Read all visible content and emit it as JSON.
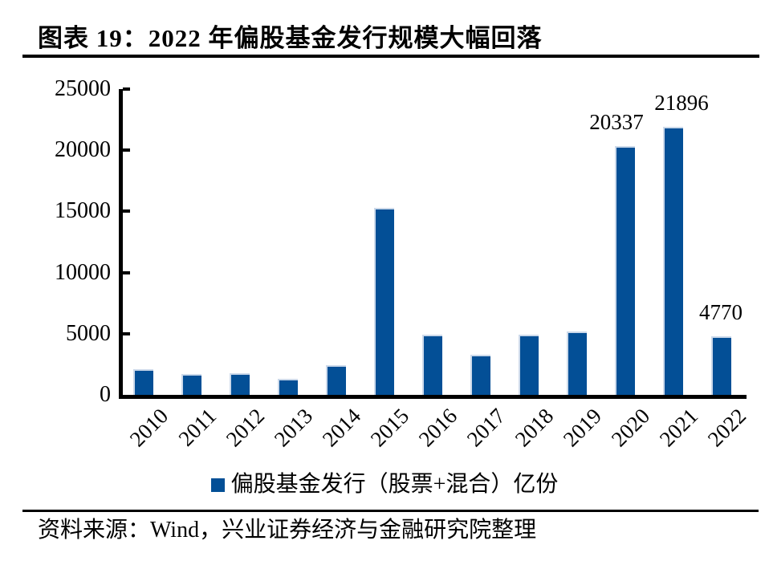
{
  "figure": {
    "title": "图表 19：2022 年偏股基金发行规模大幅回落",
    "source": "资料来源：Wind，兴业证券经济与金融研究院整理"
  },
  "colors": {
    "bar": "#034F96",
    "bar_highlight": "#ccd9ea",
    "axis": "#000000",
    "text": "#000000"
  },
  "chart_data": {
    "type": "bar",
    "title": "图表 19：2022 年偏股基金发行规模大幅回落",
    "categories": [
      "2010",
      "2011",
      "2012",
      "2013",
      "2014",
      "2015",
      "2016",
      "2017",
      "2018",
      "2019",
      "2020",
      "2021",
      "2022"
    ],
    "values": [
      2080,
      1700,
      1790,
      1310,
      2450,
      15300,
      4940,
      3280,
      4920,
      5200,
      20337,
      21896,
      4770
    ],
    "point_labels": [
      "",
      "",
      "",
      "",
      "",
      "",
      "",
      "",
      "",
      "",
      "20337",
      "21896",
      "4770"
    ],
    "legend": [
      "偏股基金发行（股票+混合）亿份"
    ],
    "xlabel": "",
    "ylabel": "",
    "ylim": [
      0,
      25000
    ],
    "yticks": [
      0,
      5000,
      10000,
      15000,
      20000,
      25000
    ],
    "grid": false,
    "legend_position": "bottom"
  }
}
